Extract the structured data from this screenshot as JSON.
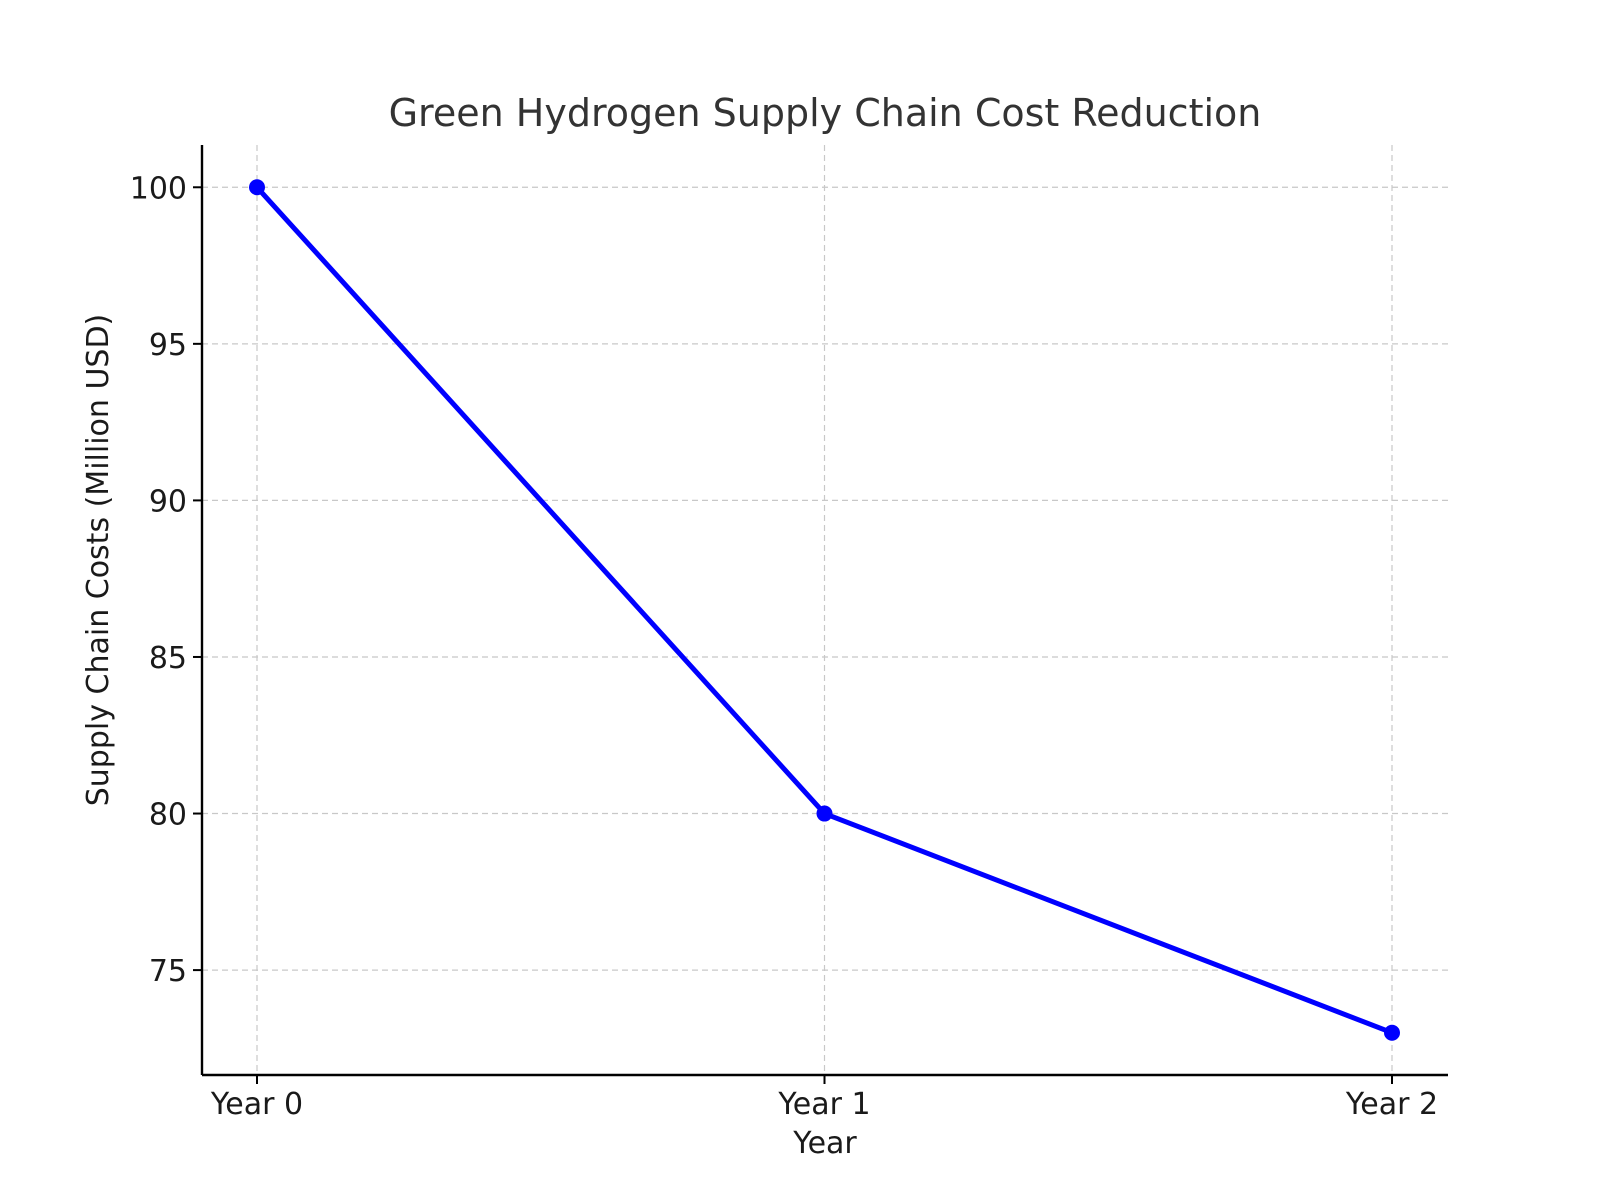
{
  "chart_data": {
    "type": "line",
    "title": "Green Hydrogen Supply Chain Cost Reduction",
    "xlabel": "Year",
    "ylabel": "Supply Chain Costs (Million USD)",
    "categories": [
      "Year 0",
      "Year 1",
      "Year 2"
    ],
    "series": [
      {
        "values": [
          100,
          80,
          73
        ],
        "color": "#0000ff",
        "marker": "circle"
      }
    ],
    "yticks": [
      75,
      80,
      85,
      90,
      95,
      100
    ],
    "ylim": [
      71.65,
      101.35
    ],
    "grid": true,
    "legend": "none"
  }
}
